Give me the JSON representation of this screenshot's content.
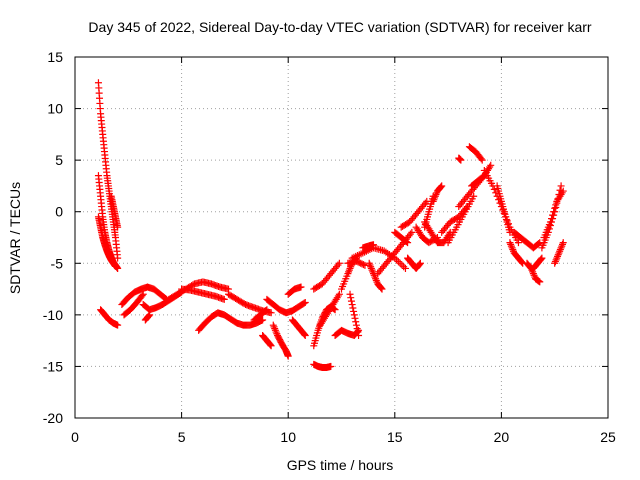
{
  "chart_data": {
    "type": "scatter",
    "title": "Day 345 of 2022, Sidereal Day-to-day VTEC variation (SDTVAR) for receiver karr",
    "xlabel": "GPS time / hours",
    "ylabel": "SDTVAR / TECUs",
    "xlim": [
      0,
      25
    ],
    "ylim": [
      -20,
      15
    ],
    "xticks": [
      0,
      5,
      10,
      15,
      20,
      25
    ],
    "yticks": [
      -20,
      -15,
      -10,
      -5,
      0,
      5,
      10,
      15
    ],
    "grid": true,
    "marker": "+",
    "color": "#ff0000",
    "segments": [
      {
        "name": "arc-01",
        "x": [
          1.1,
          1.2,
          1.3,
          1.4,
          1.5,
          1.6,
          1.7,
          1.8,
          1.9,
          2.0
        ],
        "y": [
          12.5,
          9.5,
          7.5,
          5.5,
          3.5,
          2.0,
          0.5,
          -1.0,
          -2.5,
          -4.5
        ]
      },
      {
        "name": "arc-02",
        "x": [
          1.1,
          1.2,
          1.3,
          1.4,
          1.5,
          1.6,
          1.7,
          1.8,
          1.9,
          2.0
        ],
        "y": [
          3.5,
          1.5,
          -0.5,
          -2.0,
          -3.0,
          -3.8,
          -4.4,
          -4.9,
          -5.2,
          -5.5
        ]
      },
      {
        "name": "arc-03",
        "x": [
          1.1,
          1.2,
          1.3,
          1.4,
          1.5,
          1.6,
          1.7,
          1.8,
          1.9
        ],
        "y": [
          -0.5,
          -1.5,
          -2.5,
          -3.2,
          -3.8,
          -4.3,
          -4.7,
          -5.0,
          -5.3
        ]
      },
      {
        "name": "arc-04",
        "x": [
          1.7,
          1.8,
          1.9,
          2.0
        ],
        "y": [
          1.5,
          0.5,
          -0.5,
          -1.5
        ]
      },
      {
        "name": "arc-05",
        "x": [
          1.2,
          1.4,
          1.6,
          1.8,
          2.0
        ],
        "y": [
          -9.5,
          -10.0,
          -10.5,
          -10.8,
          -11.0
        ]
      },
      {
        "name": "arc-06",
        "x": [
          2.2,
          2.5,
          2.8,
          3.1,
          3.4,
          3.7,
          4.0,
          4.3
        ],
        "y": [
          -9.0,
          -8.3,
          -7.8,
          -7.5,
          -7.3,
          -7.5,
          -8.0,
          -8.5
        ]
      },
      {
        "name": "arc-07",
        "x": [
          2.3,
          2.6,
          2.9,
          3.2
        ],
        "y": [
          -10.0,
          -9.5,
          -8.8,
          -8.0
        ]
      },
      {
        "name": "arc-08",
        "x": [
          3.2,
          3.5,
          3.8,
          4.1,
          4.4,
          4.7,
          5.0
        ],
        "y": [
          -9.0,
          -9.5,
          -9.3,
          -9.0,
          -8.6,
          -8.2,
          -7.8
        ]
      },
      {
        "name": "arc-09",
        "x": [
          3.3,
          3.5
        ],
        "y": [
          -10.5,
          -10.0
        ]
      },
      {
        "name": "arc-10",
        "x": [
          4.4,
          4.8,
          5.2,
          5.6,
          6.0,
          6.4,
          6.8,
          7.2
        ],
        "y": [
          -8.5,
          -8.0,
          -7.5,
          -7.0,
          -6.8,
          -7.0,
          -7.3,
          -7.5
        ]
      },
      {
        "name": "arc-11",
        "x": [
          5.0,
          5.4,
          5.8,
          6.2,
          6.6,
          7.0
        ],
        "y": [
          -7.5,
          -7.6,
          -7.8,
          -8.0,
          -8.2,
          -8.5
        ]
      },
      {
        "name": "arc-12",
        "x": [
          5.8,
          6.1,
          6.4,
          6.7,
          7.0,
          7.3,
          7.6,
          7.9,
          8.2,
          8.5,
          8.8
        ],
        "y": [
          -11.5,
          -10.8,
          -10.2,
          -9.8,
          -10.0,
          -10.4,
          -10.8,
          -11.0,
          -11.0,
          -10.8,
          -10.5
        ]
      },
      {
        "name": "arc-13",
        "x": [
          7.2,
          7.6,
          8.0,
          8.4,
          8.8,
          9.2
        ],
        "y": [
          -8.0,
          -8.5,
          -9.0,
          -9.3,
          -9.6,
          -9.8
        ]
      },
      {
        "name": "arc-14",
        "x": [
          8.4,
          8.7,
          9.0
        ],
        "y": [
          -10.5,
          -10.0,
          -9.5
        ]
      },
      {
        "name": "arc-15",
        "x": [
          8.8,
          9.0,
          9.2
        ],
        "y": [
          -12.0,
          -12.5,
          -13.0
        ]
      },
      {
        "name": "arc-16",
        "x": [
          9.0,
          9.3,
          9.6,
          9.9,
          10.2,
          10.5,
          10.8
        ],
        "y": [
          -8.5,
          -9.0,
          -9.5,
          -9.8,
          -9.6,
          -9.2,
          -8.8
        ]
      },
      {
        "name": "arc-17",
        "x": [
          9.3,
          9.5,
          9.7,
          9.9,
          10.0
        ],
        "y": [
          -11.0,
          -12.0,
          -12.8,
          -13.5,
          -14.0
        ]
      },
      {
        "name": "arc-18",
        "x": [
          10.0,
          10.3,
          10.6
        ],
        "y": [
          -8.0,
          -7.5,
          -7.3
        ]
      },
      {
        "name": "arc-19",
        "x": [
          10.2,
          10.4,
          10.6,
          10.8
        ],
        "y": [
          -10.5,
          -11.0,
          -11.5,
          -12.0
        ]
      },
      {
        "name": "arc-20",
        "x": [
          11.2,
          11.4,
          11.6,
          11.8,
          12.0
        ],
        "y": [
          -14.8,
          -15.0,
          -15.1,
          -15.1,
          -15.0
        ]
      },
      {
        "name": "arc-21",
        "x": [
          11.2,
          11.4,
          11.6,
          11.8,
          12.0,
          12.2
        ],
        "y": [
          -13.0,
          -11.5,
          -10.3,
          -9.5,
          -9.2,
          -9.5
        ]
      },
      {
        "name": "arc-22",
        "x": [
          11.2,
          11.6,
          12.0,
          12.4
        ],
        "y": [
          -7.5,
          -7.0,
          -6.0,
          -5.0
        ]
      },
      {
        "name": "arc-23",
        "x": [
          11.5,
          11.8,
          12.1,
          12.4
        ],
        "y": [
          -11.0,
          -10.0,
          -9.0,
          -8.0
        ]
      },
      {
        "name": "arc-24",
        "x": [
          12.2,
          12.5,
          12.8,
          13.1,
          13.3
        ],
        "y": [
          -12.0,
          -11.5,
          -11.8,
          -12.0,
          -11.5
        ]
      },
      {
        "name": "arc-25",
        "x": [
          12.5,
          12.8,
          13.0,
          13.2
        ],
        "y": [
          -7.5,
          -6.0,
          -5.0,
          -4.5
        ]
      },
      {
        "name": "arc-26",
        "x": [
          12.9,
          13.1,
          13.3
        ],
        "y": [
          -8.0,
          -10.0,
          -12.0
        ]
      },
      {
        "name": "arc-27",
        "x": [
          12.8,
          13.2,
          13.6
        ],
        "y": [
          -5.0,
          -4.8,
          -5.2
        ]
      },
      {
        "name": "arc-28",
        "x": [
          13.0,
          13.5,
          14.0,
          14.5,
          15.0,
          15.5
        ],
        "y": [
          -4.5,
          -4.0,
          -3.5,
          -3.8,
          -4.5,
          -5.5
        ]
      },
      {
        "name": "arc-29",
        "x": [
          13.5,
          13.8,
          14.0
        ],
        "y": [
          -3.5,
          -3.3,
          -3.2
        ]
      },
      {
        "name": "arc-30",
        "x": [
          13.8,
          14.0,
          14.2,
          14.4
        ],
        "y": [
          -5.0,
          -6.0,
          -7.0,
          -7.5
        ]
      },
      {
        "name": "arc-31",
        "x": [
          14.2,
          14.6,
          15.0,
          15.4,
          15.8
        ],
        "y": [
          -6.0,
          -5.0,
          -4.0,
          -3.0,
          -2.0
        ]
      },
      {
        "name": "arc-32",
        "x": [
          15.0,
          15.3,
          15.6
        ],
        "y": [
          -2.0,
          -2.5,
          -3.0
        ]
      },
      {
        "name": "arc-33",
        "x": [
          15.3,
          15.7,
          16.1,
          16.5
        ],
        "y": [
          -1.5,
          -1.0,
          0.0,
          1.0
        ]
      },
      {
        "name": "arc-34",
        "x": [
          15.6,
          15.8,
          16.0,
          16.2
        ],
        "y": [
          -4.5,
          -5.0,
          -5.5,
          -5.0
        ]
      },
      {
        "name": "arc-35",
        "x": [
          16.0,
          16.3,
          16.6,
          17.0
        ],
        "y": [
          -1.5,
          -2.5,
          -3.0,
          -2.5
        ]
      },
      {
        "name": "arc-36",
        "x": [
          16.4,
          16.7,
          17.0,
          17.3,
          17.6
        ],
        "y": [
          -1.0,
          -2.0,
          -3.0,
          -3.0,
          -2.0
        ]
      },
      {
        "name": "arc-37",
        "x": [
          16.4,
          16.6,
          16.8
        ],
        "y": [
          -1.5,
          0.0,
          1.5
        ]
      },
      {
        "name": "arc-38",
        "x": [
          16.8,
          17.0,
          17.2
        ],
        "y": [
          1.0,
          2.0,
          2.5
        ]
      },
      {
        "name": "arc-39",
        "x": [
          17.2,
          17.6,
          18.0,
          18.4
        ],
        "y": [
          -2.0,
          -1.0,
          -0.5,
          0.5
        ]
      },
      {
        "name": "arc-40",
        "x": [
          17.5,
          17.9,
          18.3,
          18.7
        ],
        "y": [
          -3.0,
          -1.5,
          0.0,
          1.5
        ]
      },
      {
        "name": "arc-41",
        "x": [
          18.0,
          18.4,
          18.8,
          19.2,
          19.5
        ],
        "y": [
          0.5,
          1.5,
          2.5,
          3.5,
          4.5
        ]
      },
      {
        "name": "arc-42",
        "x": [
          18.0,
          18.1
        ],
        "y": [
          5.2,
          5.0
        ]
      },
      {
        "name": "arc-43",
        "x": [
          18.5,
          18.8,
          19.1
        ],
        "y": [
          6.3,
          5.8,
          5.0
        ]
      },
      {
        "name": "arc-44",
        "x": [
          18.6,
          18.9,
          19.2
        ],
        "y": [
          2.5,
          3.0,
          3.5
        ]
      },
      {
        "name": "arc-45",
        "x": [
          19.2,
          19.6,
          20.0,
          20.4,
          20.8
        ],
        "y": [
          4.0,
          2.5,
          0.5,
          -1.5,
          -3.0
        ]
      },
      {
        "name": "arc-46",
        "x": [
          19.8,
          20.0,
          20.2,
          20.4
        ],
        "y": [
          2.5,
          1.0,
          -0.5,
          -2.0
        ]
      },
      {
        "name": "arc-47",
        "x": [
          20.4,
          20.6,
          20.8,
          21.0
        ],
        "y": [
          -3.0,
          -4.0,
          -4.5,
          -5.0
        ]
      },
      {
        "name": "arc-48",
        "x": [
          20.6,
          20.9,
          21.2,
          21.5,
          21.8
        ],
        "y": [
          -2.0,
          -2.5,
          -3.0,
          -3.5,
          -3.0
        ]
      },
      {
        "name": "arc-49",
        "x": [
          21.2,
          21.4,
          21.6,
          21.8
        ],
        "y": [
          -5.0,
          -5.5,
          -6.5,
          -6.8
        ]
      },
      {
        "name": "arc-50",
        "x": [
          21.5,
          21.7,
          21.9
        ],
        "y": [
          -5.5,
          -5.0,
          -4.5
        ]
      },
      {
        "name": "arc-51",
        "x": [
          21.9,
          22.2,
          22.5,
          22.8
        ],
        "y": [
          -3.5,
          -2.0,
          0.0,
          2.5
        ]
      },
      {
        "name": "arc-52",
        "x": [
          22.0,
          22.3,
          22.6,
          22.9
        ],
        "y": [
          -2.5,
          -1.0,
          1.0,
          2.0
        ]
      },
      {
        "name": "arc-53",
        "x": [
          22.5,
          22.7,
          22.9
        ],
        "y": [
          -5.0,
          -4.0,
          -3.0
        ]
      }
    ]
  }
}
